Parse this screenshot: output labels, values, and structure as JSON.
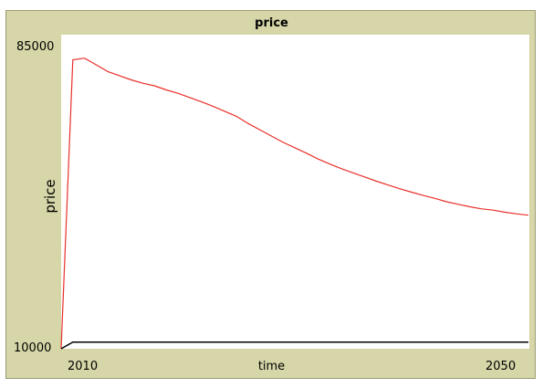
{
  "chart_data": {
    "type": "line",
    "title": "price",
    "xlabel": "time",
    "ylabel": "price",
    "xlim": [
      2010,
      2050
    ],
    "ylim": [
      10000,
      85000
    ],
    "x_tick_labels": [
      "2010",
      "2050"
    ],
    "y_tick_labels": [
      "85000",
      "10000"
    ],
    "legend": false,
    "grid": false,
    "series": [
      {
        "color": "#e8302a",
        "x": [
          2010,
          2011,
          2012,
          2013,
          2014,
          2015,
          2016,
          2017,
          2018,
          2019,
          2020,
          2021,
          2022,
          2023,
          2024,
          2025,
          2026,
          2027,
          2028,
          2029,
          2030,
          2031,
          2032,
          2033,
          2034,
          2035,
          2036,
          2037,
          2038,
          2039,
          2040,
          2041,
          2042,
          2043,
          2044,
          2045,
          2046,
          2047,
          2048,
          2049,
          2050
        ],
        "y": [
          10000,
          79000,
          79400,
          77800,
          76200,
          75200,
          74200,
          73400,
          72800,
          71800,
          71000,
          70000,
          69000,
          67900,
          66700,
          65500,
          63800,
          62300,
          60800,
          59300,
          58000,
          56700,
          55300,
          54100,
          53000,
          52000,
          51000,
          50000,
          49100,
          48200,
          47400,
          46600,
          45900,
          45100,
          44500,
          43900,
          43400,
          43100,
          42600,
          42200,
          41900
        ]
      },
      {
        "color": "#000000",
        "x": [
          2010,
          2011,
          2050
        ],
        "y": [
          10000,
          11600,
          11600
        ]
      }
    ]
  }
}
